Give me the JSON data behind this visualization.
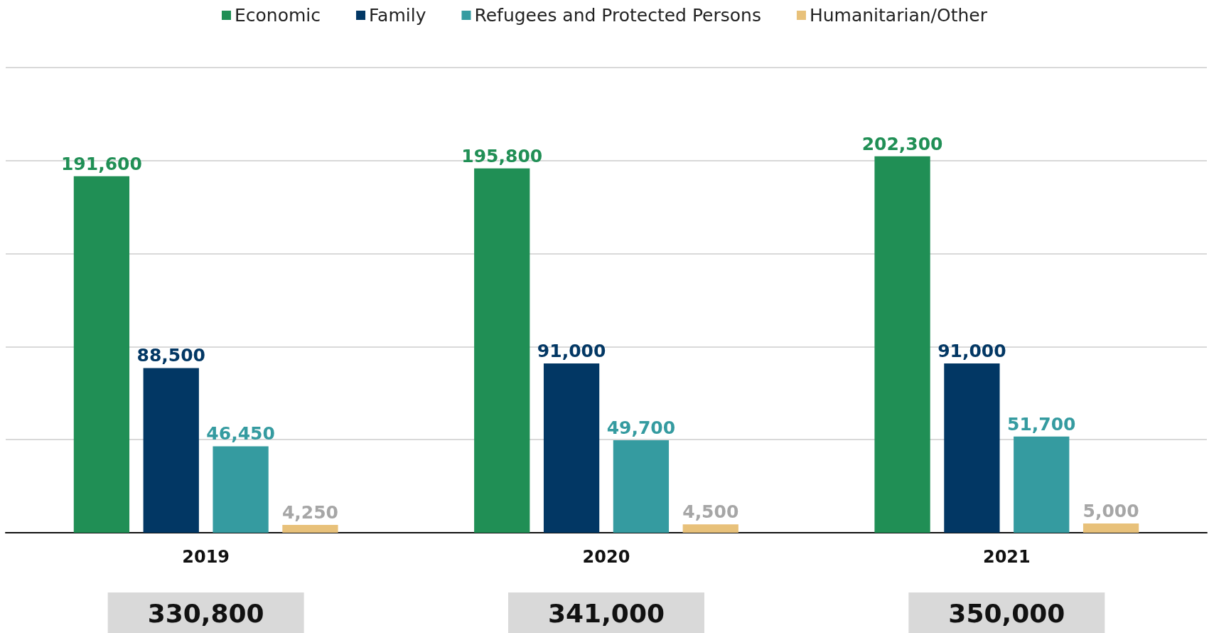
{
  "chart_data": {
    "type": "bar",
    "categories": [
      "2019",
      "2020",
      "2021"
    ],
    "series": [
      {
        "name": "Economic",
        "color": "#208f55",
        "values": [
          191600,
          195800,
          202300
        ],
        "value_labels": [
          "191,600",
          "195,800",
          "202,300"
        ]
      },
      {
        "name": "Family",
        "color": "#023764",
        "values": [
          88500,
          91000,
          91000
        ],
        "value_labels": [
          "88,500",
          "91,000",
          "91,000"
        ]
      },
      {
        "name": "Refugees and Protected Persons",
        "color": "#359ba0",
        "values": [
          46450,
          49700,
          51700
        ],
        "value_labels": [
          "46,450",
          "49,700",
          "51,700"
        ]
      },
      {
        "name": "Humanitarian/Other",
        "color": "#e8c17a",
        "values": [
          4250,
          4500,
          5000
        ],
        "value_labels": [
          "4,250",
          "4,500",
          "5,000"
        ]
      }
    ],
    "grid": "y",
    "legend": "top",
    "tick_labels": "x",
    "totals": [
      "330,800",
      "341,000",
      "350,000"
    ]
  }
}
